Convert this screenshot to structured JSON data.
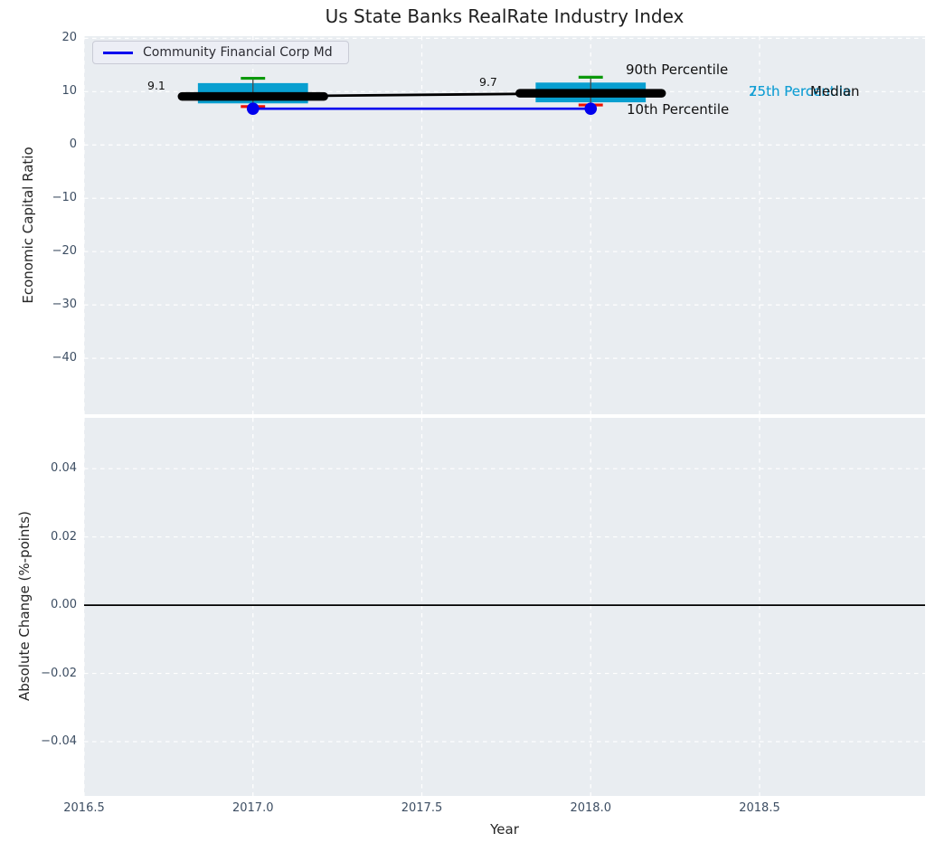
{
  "title": "Us State Banks RealRate Industry Index",
  "legend": {
    "label": "Community Financial Corp Md"
  },
  "top_axes": {
    "ylabel": "Economic Capital Ratio",
    "ytick_labels": [
      "20",
      "10",
      "0",
      "−10",
      "−20",
      "−30",
      "−40"
    ]
  },
  "bottom_axes": {
    "ylabel": "Absolute Change (%-points)",
    "xlabel": "Year",
    "ytick_labels": [
      "0.04",
      "0.02",
      "0.00",
      "−0.02",
      "−0.04"
    ],
    "xtick_labels": [
      "2016.5",
      "2017.0",
      "2017.5",
      "2018.0",
      "2018.5"
    ]
  },
  "annotations": {
    "median_2017": "9.1",
    "median_2018": "9.7",
    "p90_label": "90th Percentile",
    "p10_label": "10th Percentile",
    "p75_label": "75th Percentile",
    "p25_label": "25th Percentile",
    "median_label": "Median"
  },
  "colors": {
    "box": "#089fd0",
    "percentile_text": "#149fd4",
    "company": "#0000ee",
    "p90_cap": "#0b990b",
    "p10_cap": "#ee1100",
    "median_line": "#000000",
    "whisker": "#4a4a4a",
    "zero_line": "#000000",
    "panel_bg": "#e9edf1",
    "grid": "#ffffff",
    "tick_text": "#3d4e63"
  },
  "chart_data": [
    {
      "type": "box",
      "title": "Us State Banks RealRate Industry Index",
      "xlabel": "Year",
      "ylabel": "Economic Capital Ratio",
      "xlim": [
        2016.5,
        2018.99
      ],
      "ylim": [
        -50.5,
        20.4
      ],
      "xticks": [
        2016.5,
        2017.0,
        2017.5,
        2018.0,
        2018.5
      ],
      "yticks": [
        20,
        10,
        0,
        -10,
        -20,
        -30,
        -40
      ],
      "grid": true,
      "legend_position": "upper left",
      "boxes": [
        {
          "x": 2017,
          "p90": 12.5,
          "p75": 11.6,
          "median": 9.1,
          "p25": 7.8,
          "p10": 7.2
        },
        {
          "x": 2018,
          "p90": 12.7,
          "p75": 11.7,
          "median": 9.7,
          "p25": 8.0,
          "p10": 7.5
        }
      ],
      "median_labels": [
        "9.1",
        "9.7"
      ],
      "series": [
        {
          "name": "Community Financial Corp Md",
          "x": [
            2017,
            2018
          ],
          "values": [
            6.8,
            6.8
          ],
          "color": "#0000ee"
        }
      ],
      "annotations": [
        "90th Percentile",
        "10th Percentile",
        "75th Percentile",
        "25th Percentile",
        "Median"
      ]
    },
    {
      "type": "line",
      "xlabel": "Year",
      "ylabel": "Absolute Change (%-points)",
      "xlim": [
        2016.5,
        2018.99
      ],
      "ylim": [
        -0.0559,
        0.0549
      ],
      "xticks": [
        2016.5,
        2017.0,
        2017.5,
        2018.0,
        2018.5
      ],
      "yticks": [
        0.04,
        0.02,
        0.0,
        -0.02,
        -0.04
      ],
      "grid": true,
      "reference_line_y": 0.0,
      "series": []
    }
  ]
}
